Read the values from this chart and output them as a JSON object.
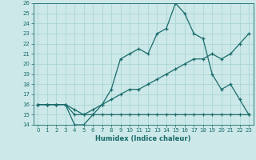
{
  "title": "",
  "xlabel": "Humidex (Indice chaleur)",
  "xlim": [
    -0.5,
    23.5
  ],
  "ylim": [
    14,
    26
  ],
  "xticks": [
    0,
    1,
    2,
    3,
    4,
    5,
    6,
    7,
    8,
    9,
    10,
    11,
    12,
    13,
    14,
    15,
    16,
    17,
    18,
    19,
    20,
    21,
    22,
    23
  ],
  "yticks": [
    14,
    15,
    16,
    17,
    18,
    19,
    20,
    21,
    22,
    23,
    24,
    25,
    26
  ],
  "bg_color": "#cce8e8",
  "line_color": "#1a6b6b",
  "grid_color": "#b0d8d8",
  "line1_x": [
    0,
    1,
    2,
    3,
    4,
    5,
    6,
    7,
    8,
    9,
    10,
    11,
    12,
    13,
    14,
    15,
    16,
    17,
    18,
    19,
    20,
    21,
    22,
    23
  ],
  "line1_y": [
    16,
    16,
    16,
    16,
    14,
    14,
    15,
    16,
    17.5,
    20.5,
    21,
    21.5,
    21,
    23,
    23.5,
    26,
    25,
    23,
    22.5,
    19,
    17.5,
    18,
    16.5,
    15
  ],
  "line2_x": [
    0,
    1,
    2,
    3,
    4,
    5,
    6,
    7,
    8,
    9,
    10,
    11,
    12,
    13,
    14,
    15,
    16,
    17,
    18,
    19,
    20,
    21,
    22,
    23
  ],
  "line2_y": [
    16,
    16,
    16,
    16,
    15.5,
    15,
    15,
    15,
    15,
    15,
    15,
    15,
    15,
    15,
    15,
    15,
    15,
    15,
    15,
    15,
    15,
    15,
    15,
    15
  ],
  "line3_x": [
    0,
    1,
    2,
    3,
    4,
    5,
    6,
    7,
    8,
    9,
    10,
    11,
    12,
    13,
    14,
    15,
    16,
    17,
    18,
    19,
    20,
    21,
    22,
    23
  ],
  "line3_y": [
    16,
    16,
    16,
    16,
    15,
    15,
    15.5,
    16,
    16.5,
    17,
    17.5,
    17.5,
    18,
    18.5,
    19,
    19.5,
    20,
    20.5,
    20.5,
    21,
    20.5,
    21,
    22,
    23
  ]
}
